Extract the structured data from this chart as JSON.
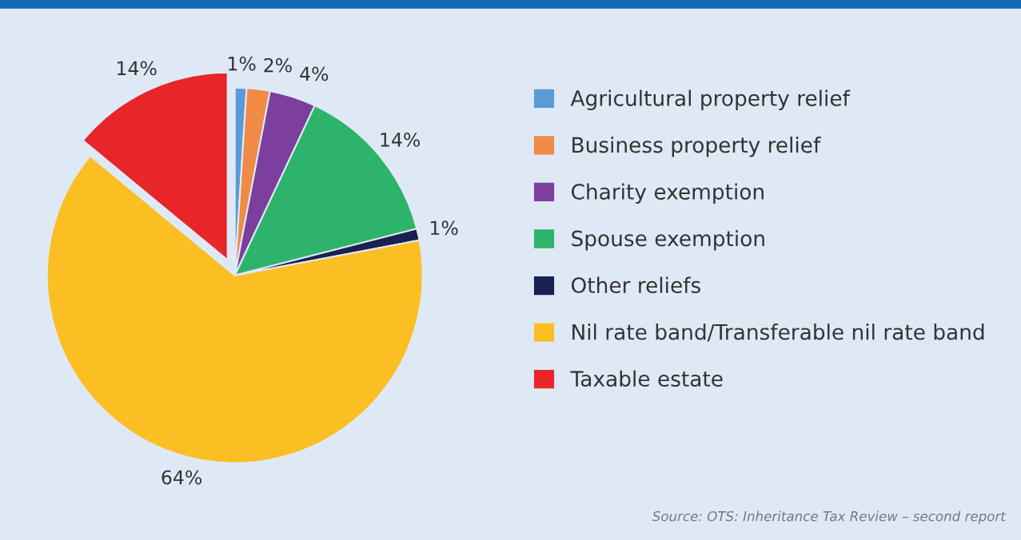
{
  "chart_data": {
    "type": "pie",
    "categories": [
      "Agricultural property relief",
      "Business property relief",
      "Charity exemption",
      "Spouse exemption",
      "Other reliefs",
      "Nil rate band/Transferable nil rate band",
      "Taxable estate"
    ],
    "values": [
      1,
      2,
      4,
      14,
      1,
      64,
      14
    ],
    "colors": [
      "#5b9bd5",
      "#f08a45",
      "#7b3f9e",
      "#2eb46a",
      "#1a2050",
      "#fbbf23",
      "#e8262a"
    ],
    "value_labels": [
      "1%",
      "2%",
      "4%",
      "14%",
      "1%",
      "64%",
      "14%"
    ],
    "legend": "right",
    "annotations": [
      "Source: OTS: Inheritance Tax Review – second report"
    ]
  }
}
